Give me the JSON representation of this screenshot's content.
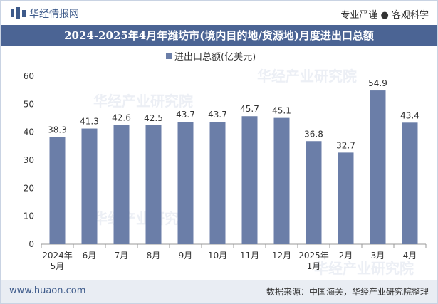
{
  "header": {
    "brand": "华经情报网",
    "slogan": "专业严谨 ● 客观科学"
  },
  "watermark_text": "华经产业研究院",
  "chart_data": {
    "type": "bar",
    "title": "2024-2025年4月年潍坊市(境内目的地/货源地)月度进出口总额",
    "legend": "进出口总额(亿美元)",
    "legend_position": "top-center",
    "categories": [
      "2024年5月",
      "6月",
      "7月",
      "8月",
      "9月",
      "10月",
      "11月",
      "12月",
      "2025年1月",
      "2月",
      "3月",
      "4月"
    ],
    "values": [
      38.3,
      41.3,
      42.6,
      42.5,
      43.7,
      43.7,
      45.7,
      45.1,
      36.8,
      32.7,
      54.9,
      43.4
    ],
    "value_labels": [
      "38.3",
      "41.3",
      "42.6",
      "42.5",
      "43.7",
      "43.7",
      "45.7",
      "45.1",
      "36.8",
      "32.7",
      "54.9",
      "43.4"
    ],
    "ylim": [
      0,
      60
    ],
    "yticks": [
      0,
      10,
      20,
      30,
      40,
      50,
      60
    ],
    "grid": false,
    "bar_color": "#6b7ea8"
  },
  "footer": {
    "website": "www.huaon.com",
    "source": "数据来源：中国海关，华经产业研究院整理"
  }
}
